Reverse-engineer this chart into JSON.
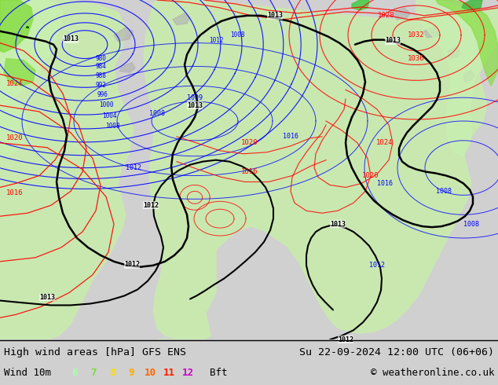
{
  "title_left": "High wind areas [hPa] GFS ENS",
  "title_right": "Su 22-09-2024 12:00 UTC (06+06)",
  "subtitle_left": "Wind 10m",
  "subtitle_right": "© weatheronline.co.uk",
  "bft_numbers": [
    "6",
    "7",
    "8",
    "9",
    "10",
    "11",
    "12"
  ],
  "bft_colors": [
    "#aaffaa",
    "#77dd44",
    "#ffdd00",
    "#ffaa00",
    "#ff6600",
    "#ff2200",
    "#cc00cc"
  ],
  "bft_label": "Bft",
  "ocean_color": "#d0d0d0",
  "land_color": "#c8e8b0",
  "land_gray": "#b0b0b0",
  "bg_color": "#d0d0d0",
  "legend_bg": "#d8d8d8",
  "fig_width": 6.34,
  "fig_height": 4.9,
  "dpi": 100
}
